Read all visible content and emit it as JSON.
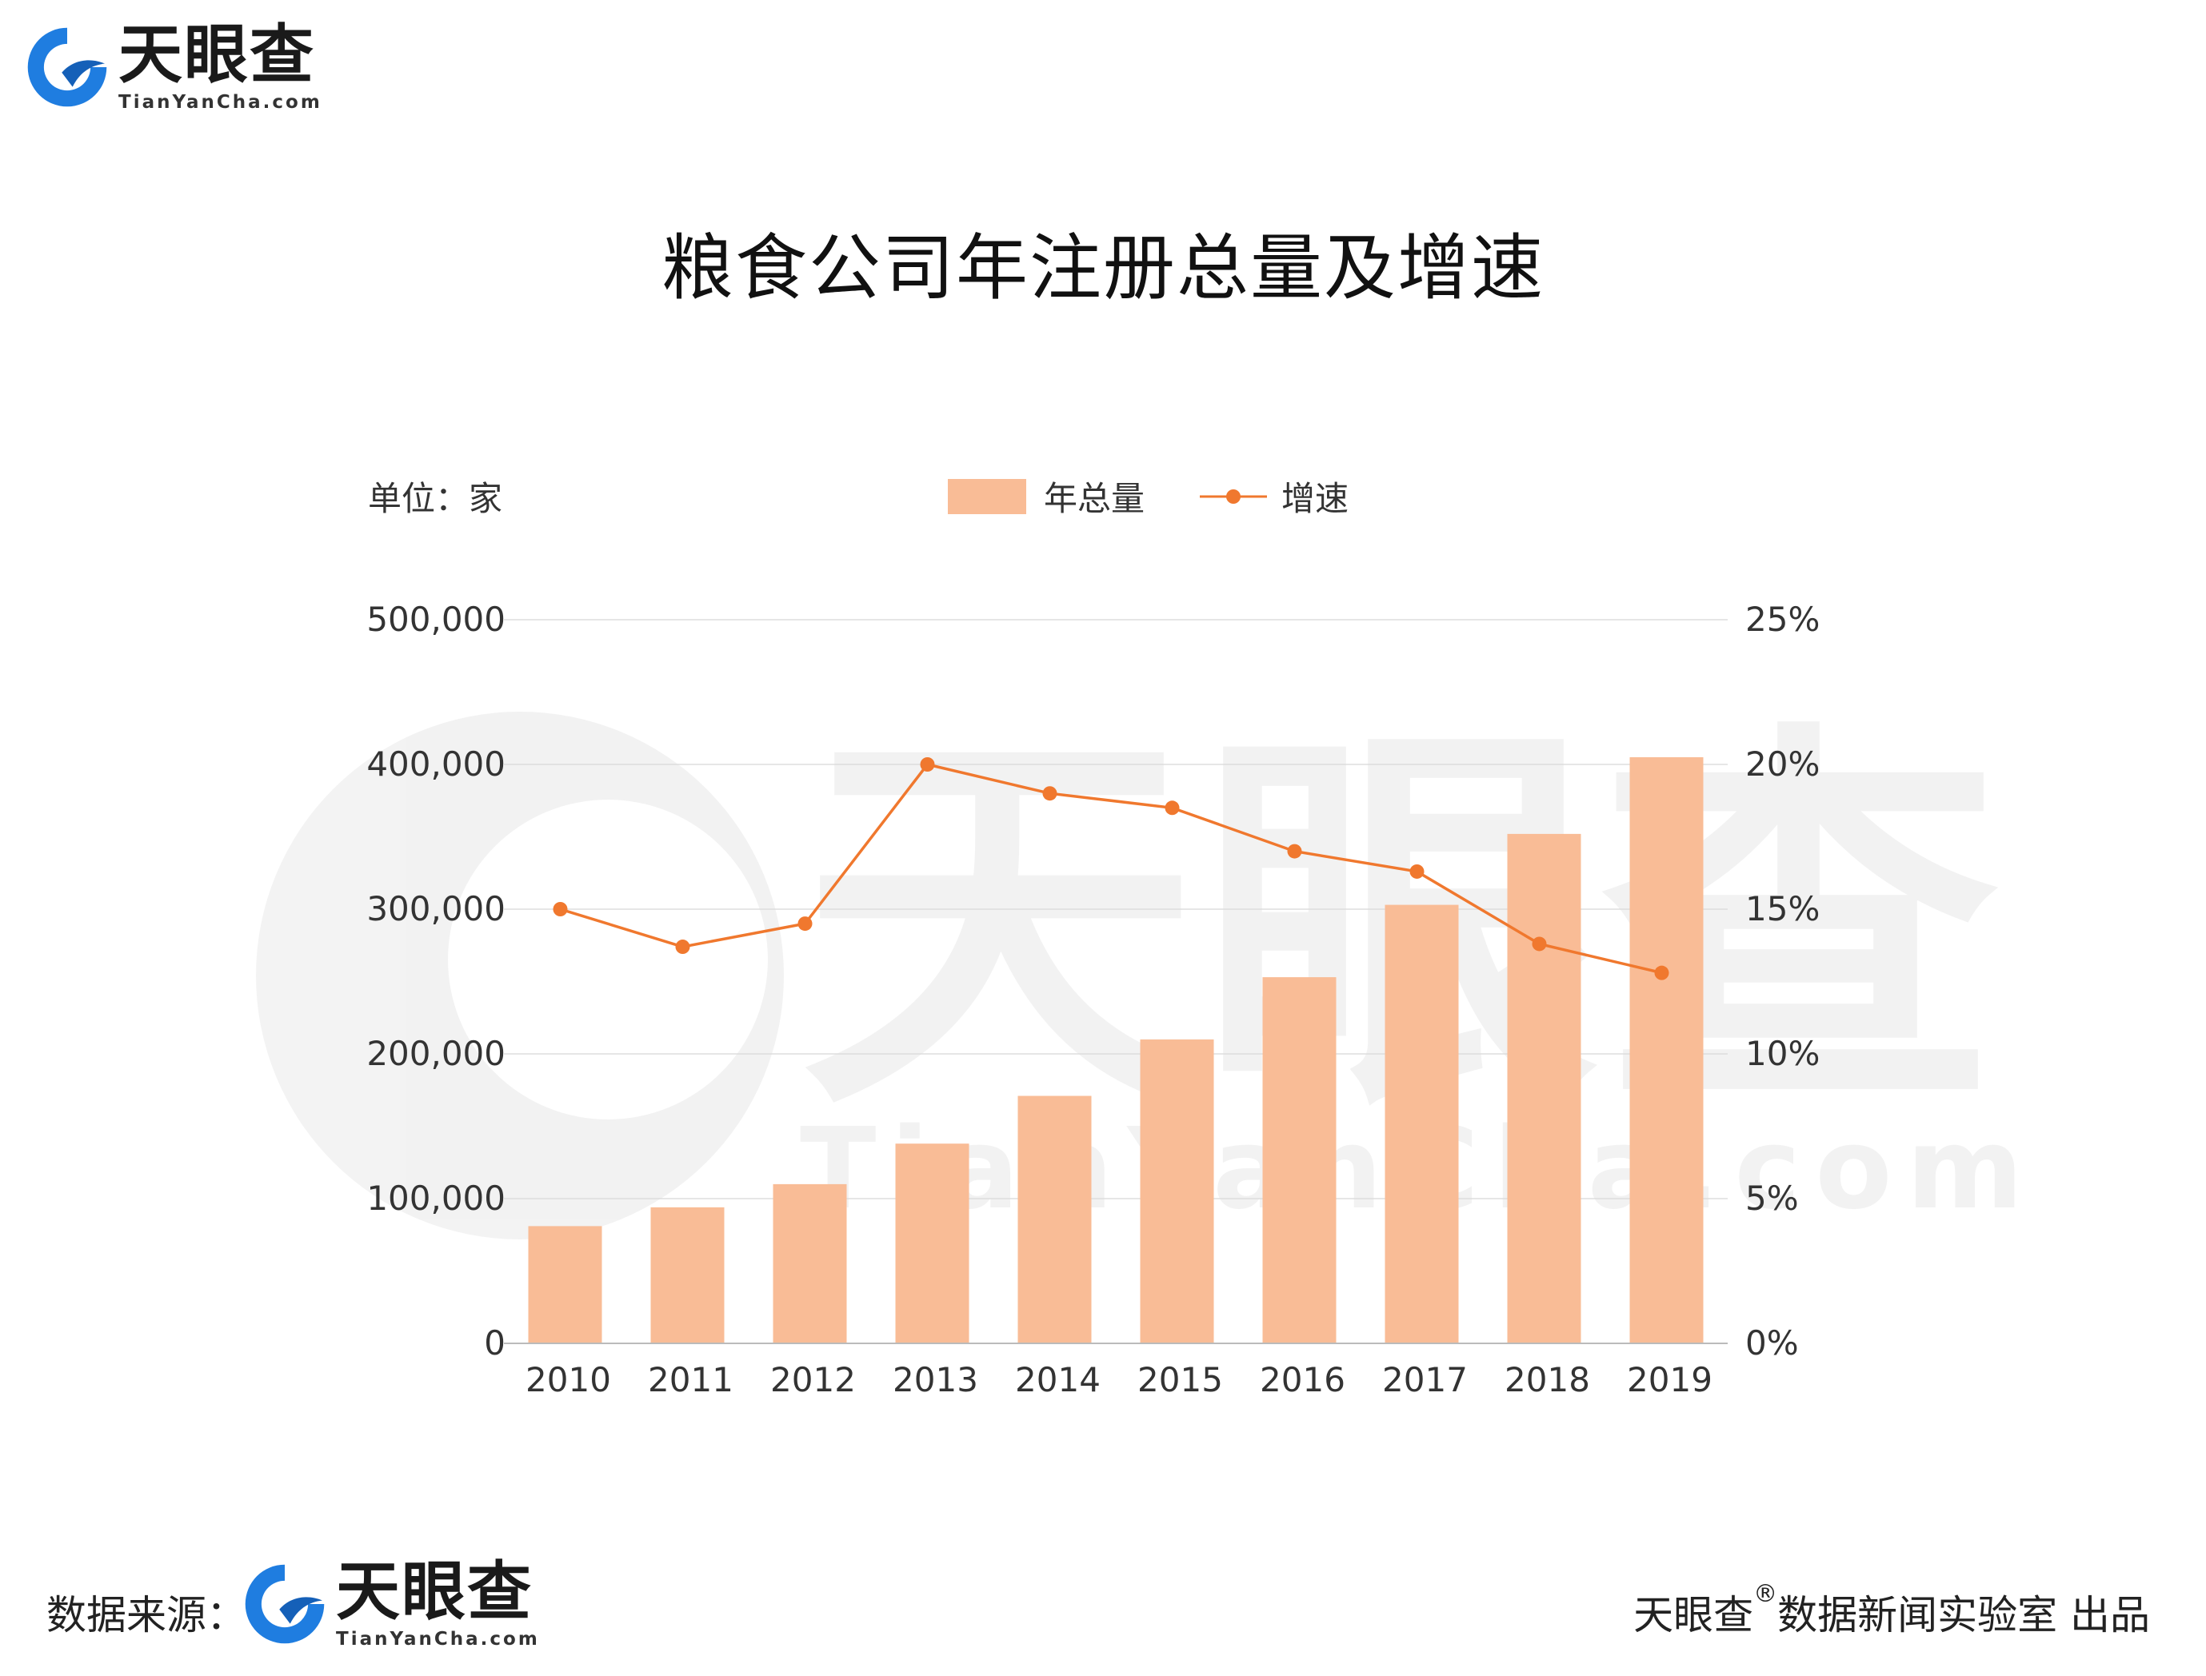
{
  "brand": {
    "name_cn": "天眼查",
    "name_en": "TianYanCha.com",
    "colors": {
      "blue": "#1f7de0",
      "blue_dark": "#1560b8"
    }
  },
  "watermark": {
    "text_cn": "天眼查",
    "text_en": "TianYanCha.com"
  },
  "unit_label": "单位：家",
  "legend": {
    "bar_label": "年总量",
    "line_label": "增速"
  },
  "footer": {
    "source_label": "数据来源：",
    "credit_prefix": "天眼查",
    "credit_registered": "®",
    "credit_suffix": "数据新闻实验室 出品"
  },
  "colors": {
    "bar": "#f9bc96",
    "line": "#f0782e",
    "grid": "#dddddd",
    "axis": "#bbbbbb"
  },
  "chart_data": {
    "type": "bar",
    "title": "粮食公司年注册总量及增速",
    "categories": [
      "2010",
      "2011",
      "2012",
      "2013",
      "2014",
      "2015",
      "2016",
      "2017",
      "2018",
      "2019"
    ],
    "series": [
      {
        "name": "年总量",
        "type": "bar",
        "axis": "left",
        "values": [
          81000,
          94000,
          110000,
          138000,
          171000,
          210000,
          253000,
          303000,
          352000,
          405000
        ]
      },
      {
        "name": "增速",
        "type": "line",
        "axis": "right",
        "values": [
          15.0,
          13.7,
          14.5,
          20.0,
          19.0,
          18.5,
          17.0,
          16.3,
          13.8,
          12.8
        ]
      }
    ],
    "y_left": {
      "ylim": [
        0,
        500000
      ],
      "ticks": [
        "0",
        "100,000",
        "200,000",
        "300,000",
        "400,000",
        "500,000"
      ]
    },
    "y_right": {
      "ylim": [
        0,
        25
      ],
      "ticks": [
        "0%",
        "5%",
        "10%",
        "15%",
        "20%",
        "25%"
      ]
    },
    "grid": true,
    "legend_position": "top-center"
  }
}
